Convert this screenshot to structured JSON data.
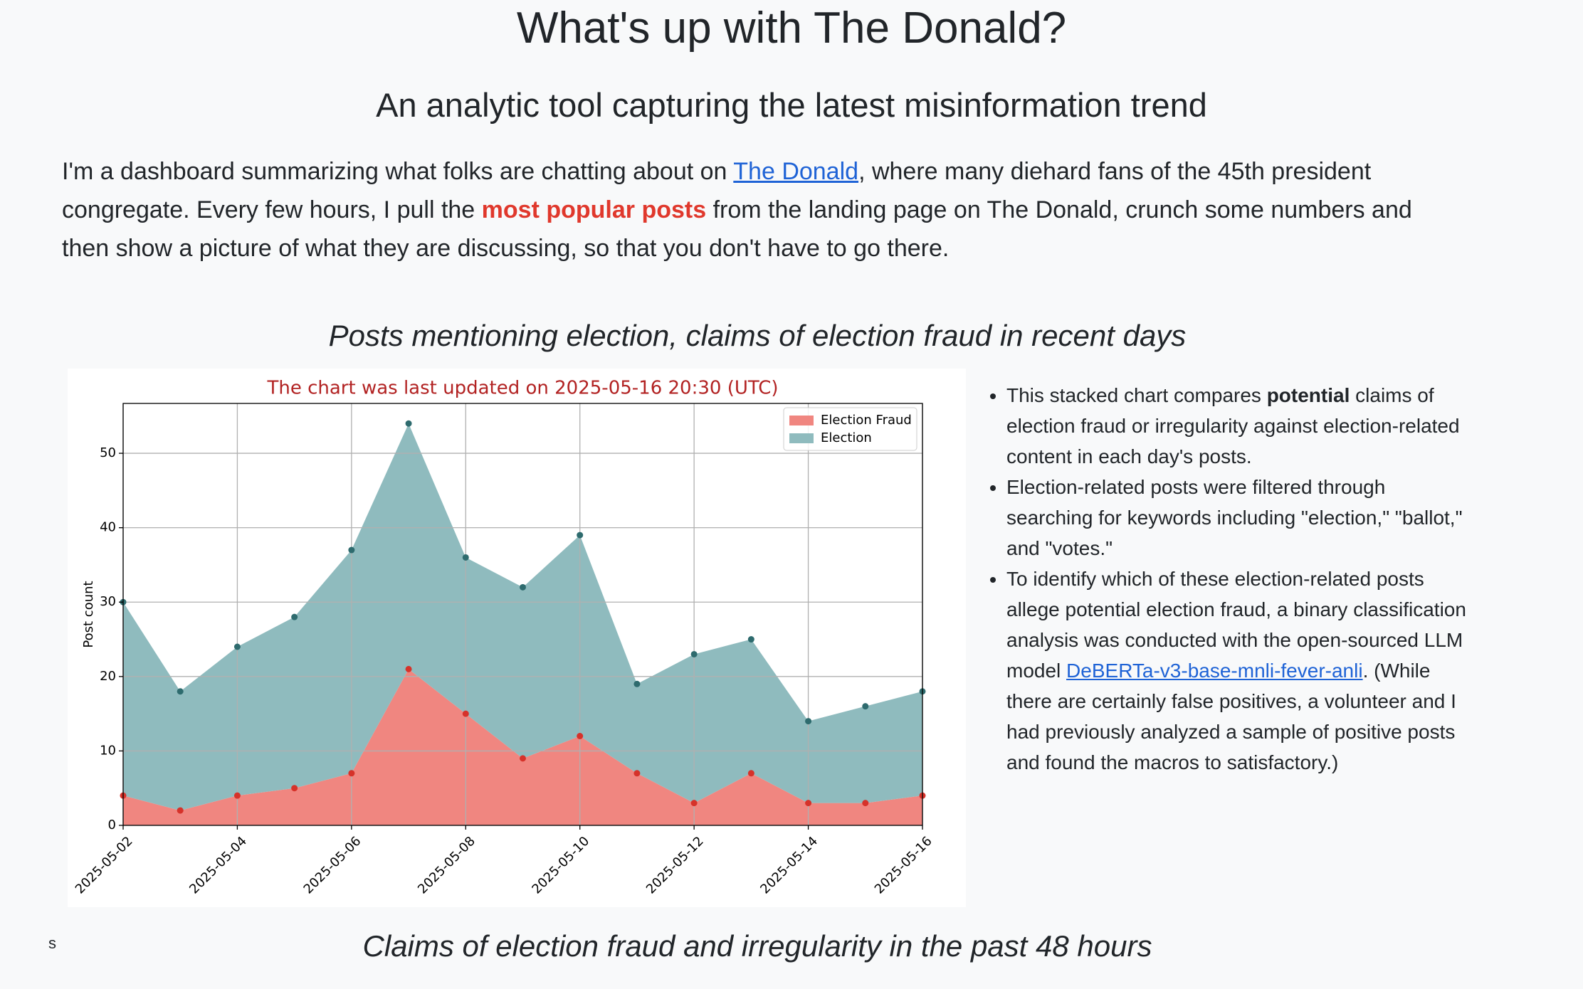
{
  "header": {
    "title": "What's up with The Donald?",
    "subtitle": "An analytic tool capturing the latest misinformation trend"
  },
  "intro": {
    "text1": "I'm a dashboard summarizing what folks are chatting about on ",
    "link": "The Donald",
    "text2": ", where many diehard fans of the 45th president congregate. Every few hours, I pull the ",
    "highlight": "most popular posts",
    "text3": " from the landing page on The Donald, crunch some numbers and then show a picture of what they are discussing, so that you don't have to go there."
  },
  "section_heading": "Posts mentioning election, claims of election fraud in recent days",
  "chart_data": {
    "type": "stacked-area",
    "title": "The chart was last updated on 2025-05-16 20:30 (UTC)",
    "y_label": "Post count",
    "x": [
      "2025-05-02",
      "2025-05-03",
      "2025-05-04",
      "2025-05-05",
      "2025-05-06",
      "2025-05-07",
      "2025-05-08",
      "2025-05-09",
      "2025-05-10",
      "2025-05-11",
      "2025-05-12",
      "2025-05-13",
      "2025-05-14",
      "2025-05-15",
      "2025-05-16"
    ],
    "series": [
      {
        "name": "Election Fraud",
        "color": "#f08680",
        "marker_color": "#d6322a",
        "values": [
          4,
          2,
          4,
          5,
          7,
          21,
          15,
          9,
          12,
          7,
          3,
          7,
          3,
          3,
          4
        ]
      },
      {
        "name": "Election",
        "color": "#8fbbbe",
        "marker_color": "#2e6b6e",
        "values": [
          26,
          16,
          20,
          23,
          30,
          33,
          21,
          23,
          27,
          12,
          20,
          18,
          11,
          13,
          14
        ]
      }
    ],
    "xlim": [
      "2025-05-02",
      "2025-05-16"
    ],
    "xticks": [
      "2025-05-02",
      "2025-05-04",
      "2025-05-06",
      "2025-05-08",
      "2025-05-10",
      "2025-05-12",
      "2025-05-14",
      "2025-05-16"
    ],
    "ylim": [
      0,
      56.7
    ],
    "yticks": [
      0,
      10,
      20,
      30,
      40,
      50
    ],
    "grid": true,
    "legend": "upper right"
  },
  "notes": [
    {
      "text1": "This stacked chart compares ",
      "bold": "potential",
      "text2": " claims of election fraud or irregularity against election-related content in each day's posts."
    },
    {
      "text": "Election-related posts were filtered through searching for keywords including \"election,\" \"ballot,\" and \"votes.\""
    },
    {
      "text1": "To identify which of these election-related posts allege potential election fraud, a binary classification analysis was conducted with the open-sourced LLM model ",
      "link": "DeBERTa-v3-base-mnli-fever-anli",
      "text2": ". (While there are certainly false positives, a volunteer and I had previously analyzed a sample of positive posts and found the macros to satisfactory.)"
    }
  ],
  "stray_text": "s",
  "next_heading": "Claims of election fraud and irregularity in the past 48 hours"
}
